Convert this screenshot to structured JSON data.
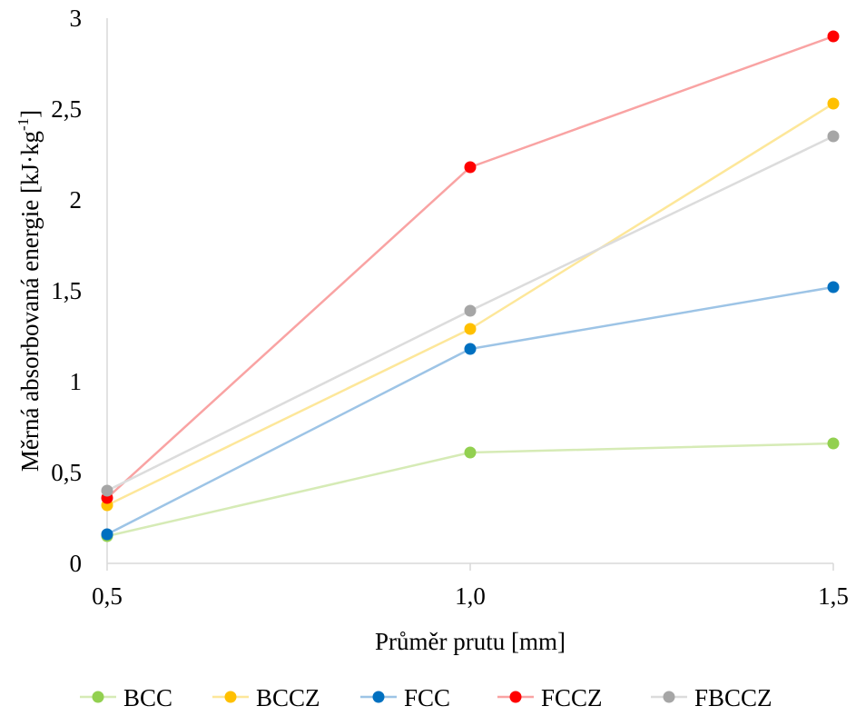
{
  "chart_data": {
    "type": "line",
    "title": "",
    "xlabel": "Průměr prutu [mm]",
    "ylabel": "Měrná absorbovaná energie [kJ·kg-1]",
    "ylabel_parts": {
      "main": "Měrná absorbovaná energie [kJ·kg",
      "superscript": "-1",
      "close": "]"
    },
    "categories": [
      "0,5",
      "1,0",
      "1,5"
    ],
    "x": [
      0.5,
      1.0,
      1.5
    ],
    "xlim": [
      0.5,
      1.5
    ],
    "ylim": [
      0,
      3
    ],
    "yticks": [
      0,
      0.5,
      1,
      1.5,
      2,
      2.5,
      3
    ],
    "ytick_labels": [
      "0",
      "0,5",
      "1",
      "1,5",
      "2",
      "2,5",
      "3"
    ],
    "grid": false,
    "legend_position": "bottom",
    "series": [
      {
        "name": "BCC",
        "values": [
          0.15,
          0.61,
          0.66
        ],
        "line_color": "#d6ebb6",
        "marker_color": "#92d050"
      },
      {
        "name": "BCCZ",
        "values": [
          0.32,
          1.29,
          2.53
        ],
        "line_color": "#fde79a",
        "marker_color": "#ffc000"
      },
      {
        "name": "FCC",
        "values": [
          0.16,
          1.18,
          1.52
        ],
        "line_color": "#9dc4e6",
        "marker_color": "#0070c0"
      },
      {
        "name": "FCCZ",
        "values": [
          0.36,
          2.18,
          2.9
        ],
        "line_color": "#f9a3a3",
        "marker_color": "#ff0000"
      },
      {
        "name": "FBCCZ",
        "values": [
          0.4,
          1.39,
          2.35
        ],
        "line_color": "#dcdcdc",
        "marker_color": "#a6a6a6"
      }
    ]
  }
}
